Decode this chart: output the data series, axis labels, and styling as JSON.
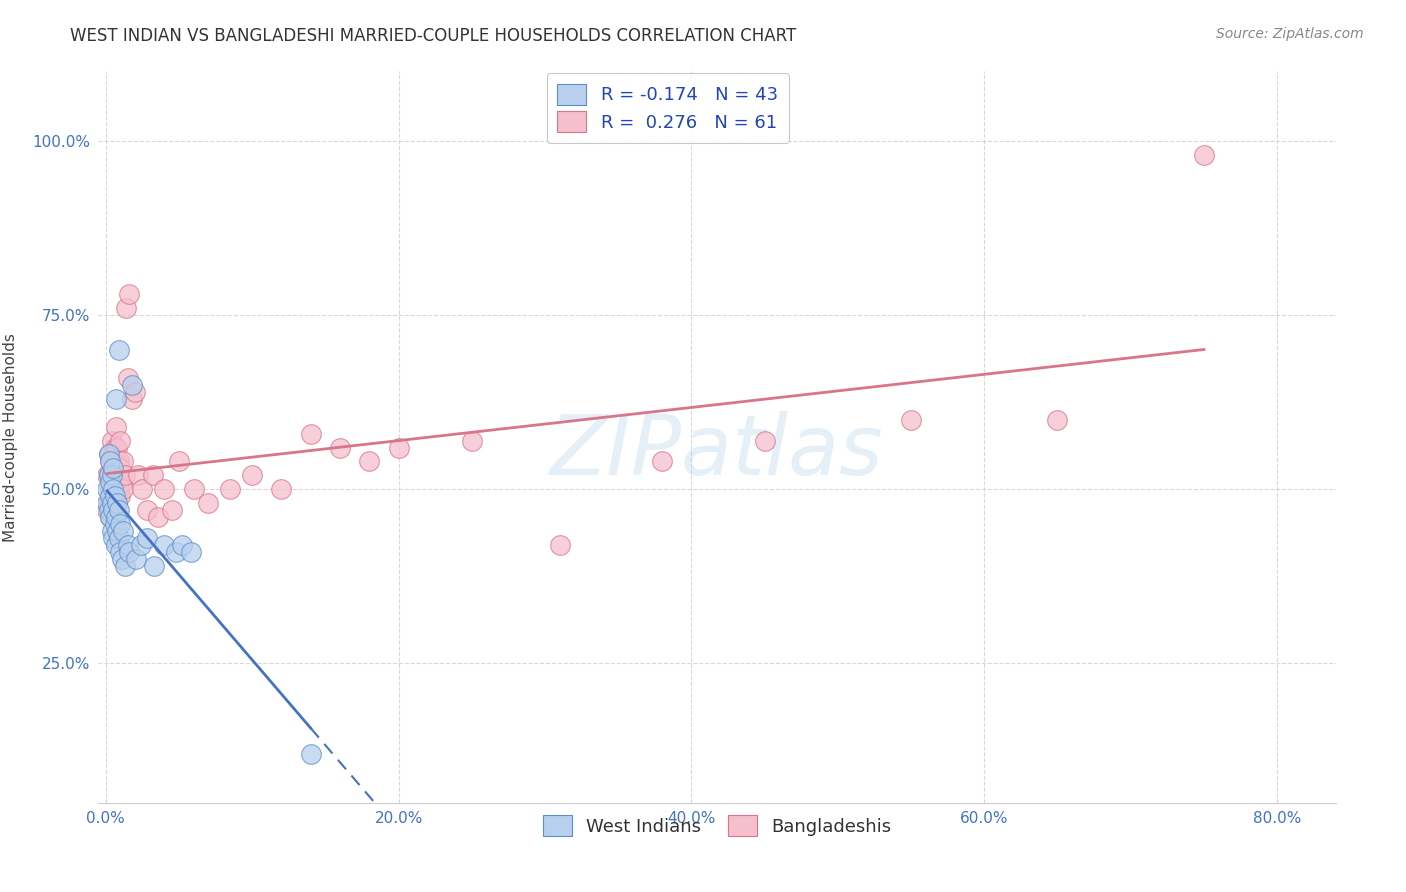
{
  "title": "WEST INDIAN VS BANGLADESHI MARRIED-COUPLE HOUSEHOLDS CORRELATION CHART",
  "source": "Source: ZipAtlas.com",
  "xlabel_ticks": [
    "0.0%",
    "",
    "",
    "",
    "",
    "20.0%",
    "",
    "",
    "",
    "",
    "40.0%",
    "",
    "",
    "",
    "",
    "60.0%",
    "",
    "",
    "",
    "",
    "80.0%"
  ],
  "xlabel_tick_vals": [
    0.0,
    0.04,
    0.08,
    0.12,
    0.16,
    0.2,
    0.24,
    0.28,
    0.32,
    0.36,
    0.4,
    0.44,
    0.48,
    0.52,
    0.56,
    0.6,
    0.64,
    0.68,
    0.72,
    0.76,
    0.8
  ],
  "xlabel_display_ticks": [
    0.0,
    0.2,
    0.4,
    0.6,
    0.8
  ],
  "xlabel_display_labels": [
    "0.0%",
    "20.0%",
    "40.0%",
    "60.0%",
    "80.0%"
  ],
  "ylabel": "Married-couple Households",
  "ylabel_ticks": [
    "25.0%",
    "50.0%",
    "75.0%",
    "100.0%"
  ],
  "ylabel_tick_vals": [
    0.25,
    0.5,
    0.75,
    1.0
  ],
  "xlim": [
    -0.005,
    0.84
  ],
  "ylim": [
    0.05,
    1.1
  ],
  "watermark": "ZIPatlas",
  "legend_wi_R": -0.174,
  "legend_wi_N": 43,
  "legend_bd_R": 0.276,
  "legend_bd_N": 61,
  "wi_color_fill": "#b8d0ed",
  "wi_color_edge": "#5b8fc9",
  "bd_color_fill": "#f5bfce",
  "bd_color_edge": "#d9758a",
  "wi_line_color": "#4472c4",
  "bd_line_color": "#d9758a",
  "background_color": "#ffffff",
  "grid_color": "#d8d8d8",
  "title_fontsize": 12,
  "source_fontsize": 10,
  "tick_fontsize": 11,
  "west_indians_x": [
    0.001,
    0.001,
    0.002,
    0.002,
    0.002,
    0.003,
    0.003,
    0.003,
    0.003,
    0.004,
    0.004,
    0.004,
    0.005,
    0.005,
    0.005,
    0.005,
    0.006,
    0.006,
    0.007,
    0.007,
    0.007,
    0.008,
    0.008,
    0.009,
    0.009,
    0.009,
    0.01,
    0.01,
    0.011,
    0.012,
    0.013,
    0.015,
    0.016,
    0.018,
    0.021,
    0.024,
    0.028,
    0.033,
    0.04,
    0.048,
    0.052,
    0.058,
    0.14
  ],
  "west_indians_y": [
    0.48,
    0.5,
    0.47,
    0.52,
    0.55,
    0.46,
    0.49,
    0.51,
    0.54,
    0.44,
    0.48,
    0.52,
    0.43,
    0.47,
    0.5,
    0.53,
    0.45,
    0.49,
    0.42,
    0.46,
    0.63,
    0.44,
    0.48,
    0.43,
    0.47,
    0.7,
    0.41,
    0.45,
    0.4,
    0.44,
    0.39,
    0.42,
    0.41,
    0.65,
    0.4,
    0.42,
    0.43,
    0.39,
    0.42,
    0.41,
    0.42,
    0.41,
    0.12
  ],
  "bangladeshis_x": [
    0.001,
    0.001,
    0.002,
    0.002,
    0.002,
    0.003,
    0.003,
    0.003,
    0.004,
    0.004,
    0.004,
    0.005,
    0.005,
    0.005,
    0.006,
    0.006,
    0.006,
    0.007,
    0.007,
    0.007,
    0.008,
    0.008,
    0.008,
    0.009,
    0.009,
    0.01,
    0.01,
    0.01,
    0.011,
    0.012,
    0.012,
    0.013,
    0.014,
    0.015,
    0.016,
    0.018,
    0.02,
    0.022,
    0.025,
    0.028,
    0.032,
    0.036,
    0.04,
    0.045,
    0.05,
    0.06,
    0.07,
    0.085,
    0.1,
    0.12,
    0.14,
    0.16,
    0.18,
    0.2,
    0.25,
    0.31,
    0.38,
    0.45,
    0.55,
    0.65,
    0.75
  ],
  "bangladeshis_y": [
    0.47,
    0.52,
    0.48,
    0.52,
    0.55,
    0.46,
    0.5,
    0.54,
    0.48,
    0.52,
    0.57,
    0.47,
    0.51,
    0.55,
    0.48,
    0.52,
    0.56,
    0.5,
    0.54,
    0.59,
    0.48,
    0.52,
    0.56,
    0.5,
    0.54,
    0.49,
    0.53,
    0.57,
    0.51,
    0.5,
    0.54,
    0.52,
    0.76,
    0.66,
    0.78,
    0.63,
    0.64,
    0.52,
    0.5,
    0.47,
    0.52,
    0.46,
    0.5,
    0.47,
    0.54,
    0.5,
    0.48,
    0.5,
    0.52,
    0.5,
    0.58,
    0.56,
    0.54,
    0.56,
    0.57,
    0.42,
    0.54,
    0.57,
    0.6,
    0.6,
    0.98
  ]
}
